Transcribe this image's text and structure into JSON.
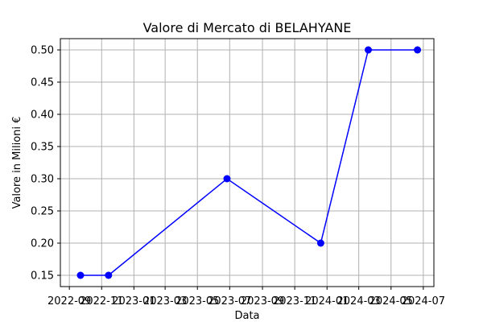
{
  "chart_data": {
    "type": "line",
    "title": "Valore di Mercato di BELAHYANE",
    "xlabel": "Data",
    "ylabel": "Valore in Milioni €",
    "x_tick_labels": [
      "2022-09",
      "2022-11",
      "2023-01",
      "2023-03",
      "2023-05",
      "2023-07",
      "2023-09",
      "2023-11",
      "2024-01",
      "2024-03",
      "2024-05",
      "2024-07"
    ],
    "x_ticks": [
      "2022-09-01",
      "2022-11-01",
      "2023-01-01",
      "2023-03-01",
      "2023-05-01",
      "2023-07-01",
      "2023-09-01",
      "2023-11-01",
      "2024-01-01",
      "2024-03-01",
      "2024-05-01",
      "2024-07-01"
    ],
    "y_ticks": [
      0.15,
      0.2,
      0.25,
      0.3,
      0.35,
      0.4,
      0.45,
      0.5
    ],
    "y_tick_labels": [
      "0.15",
      "0.20",
      "0.25",
      "0.30",
      "0.35",
      "0.40",
      "0.45",
      "0.50"
    ],
    "xlim": [
      "2022-08-15",
      "2024-07-21"
    ],
    "ylim": [
      0.1325,
      0.5175
    ],
    "grid": true,
    "series": [
      {
        "color": "#0000ff",
        "marker": "circle",
        "x": [
          "2022-09-22",
          "2022-11-14",
          "2023-06-26",
          "2023-12-20",
          "2024-03-19",
          "2024-06-20"
        ],
        "values": [
          0.15,
          0.15,
          0.3,
          0.2,
          0.5,
          0.5
        ]
      }
    ]
  }
}
